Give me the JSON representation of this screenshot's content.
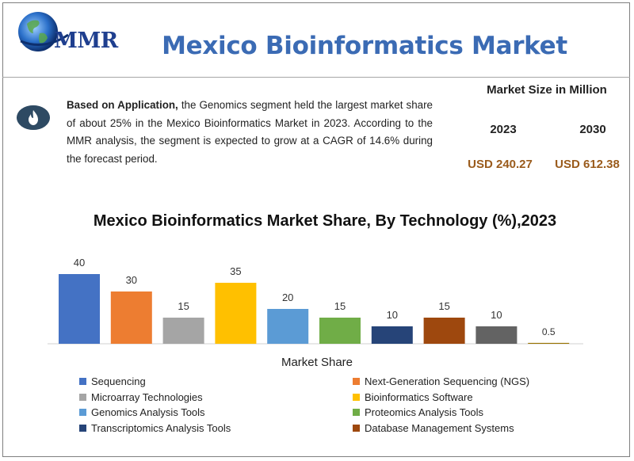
{
  "header": {
    "logo_text": "MMR",
    "title": "Mexico Bioinformatics Market"
  },
  "highlight": {
    "icon": "flame-icon",
    "bold_lead": "Based on Application,",
    "text": " the Genomics segment held the largest market share of about 25% in the Mexico Bioinformatics Market in 2023. According to the MMR analysis, the segment is expected to grow at a CAGR of 14.6% during the forecast period."
  },
  "market_size": {
    "heading": "Market Size in Million",
    "year_a": "2023",
    "year_b": "2030",
    "value_a": "USD 240.27",
    "value_b": "USD 612.38"
  },
  "chart_data": {
    "type": "bar",
    "title": "Mexico Bioinformatics Market Share, By Technology (%),2023",
    "xlabel": "Market Share",
    "ylabel": "",
    "ylim": [
      0,
      40
    ],
    "grid": false,
    "legend_position": "bottom",
    "categories": [
      "Sequencing",
      "Next-Generation Sequencing (NGS)",
      "Microarray Technologies",
      "Bioinformatics Software",
      "Genomics Analysis Tools",
      "Proteomics Analysis Tools",
      "Transcriptomics Analysis Tools",
      "Database Management Systems",
      "",
      ""
    ],
    "values": [
      40,
      30,
      15,
      35,
      20,
      15,
      10,
      15,
      10,
      0.5
    ],
    "value_labels": [
      "40",
      "30",
      "15",
      "35",
      "20",
      "15",
      "10",
      "15",
      "10",
      "0.5"
    ],
    "colors": [
      "#4472c4",
      "#ed7d31",
      "#a5a5a5",
      "#ffc000",
      "#5b9bd5",
      "#70ad47",
      "#264478",
      "#9e480e",
      "#636363",
      "#997300"
    ]
  }
}
